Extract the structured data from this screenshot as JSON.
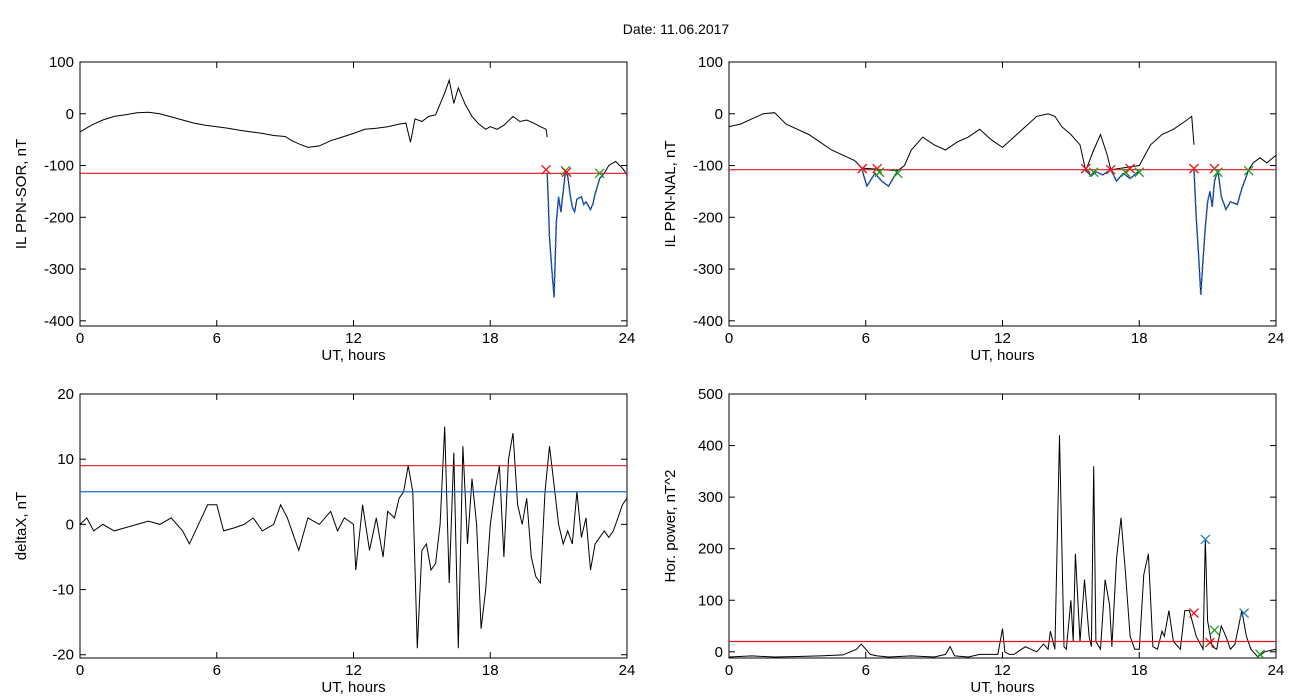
{
  "header": {
    "title": "Date:  11.06.2017"
  },
  "colors": {
    "threshold": "#e8141c",
    "secondary_threshold": "#2266cc",
    "series": "#000000",
    "event_blue": "#1f5fd0",
    "marker_red": "#e8141c",
    "marker_green": "#1aa01a",
    "marker_blue": "#2a80c0"
  },
  "chart_data": [
    {
      "id": "il-ppn-sor",
      "type": "line",
      "xlabel": "UT, hours",
      "ylabel": "IL PPN-SOR, nT",
      "xlim": [
        0,
        24
      ],
      "ylim": [
        -410,
        100
      ],
      "xticks": [
        0,
        6,
        12,
        18,
        24
      ],
      "yticks": [
        -400,
        -300,
        -200,
        -100,
        0,
        100
      ],
      "thresholds": [
        {
          "value": -115,
          "color": "#e8141c"
        }
      ],
      "series": [
        {
          "x": [
            0,
            0.5,
            1,
            1.5,
            2,
            2.5,
            3,
            3.5,
            4,
            4.5,
            5,
            5.5,
            6,
            6.5,
            7,
            7.5,
            8,
            8.5,
            9,
            9.3,
            9.6,
            10,
            10.5,
            11,
            11.5,
            12,
            12.5,
            13,
            13.5,
            14,
            14.3,
            14.5,
            14.7,
            15,
            15.3,
            15.6,
            16,
            16.2,
            16.4,
            16.6,
            16.9,
            17.2,
            17.5,
            17.8,
            18,
            18.3,
            18.6,
            19,
            19.3,
            19.6,
            19.9,
            20.2,
            20.45,
            20.5
          ],
          "y": [
            -35,
            -22,
            -12,
            -5,
            -2,
            2,
            3,
            0,
            -6,
            -12,
            -18,
            -22,
            -25,
            -28,
            -32,
            -35,
            -38,
            -42,
            -44,
            -52,
            -58,
            -65,
            -62,
            -52,
            -45,
            -38,
            -30,
            -28,
            -25,
            -20,
            -18,
            -55,
            -10,
            -15,
            -5,
            -2,
            40,
            65,
            20,
            50,
            18,
            -5,
            -20,
            -30,
            -25,
            -30,
            -22,
            -5,
            -15,
            -12,
            -18,
            -25,
            -30,
            -45
          ]
        }
      ],
      "event_series": {
        "x": [
          20.5,
          20.55,
          20.6,
          20.7,
          20.8,
          20.85,
          20.9,
          21.0,
          21.1,
          21.2,
          21.3,
          21.4,
          21.5,
          21.6,
          21.7,
          21.8,
          22.0,
          22.1,
          22.2,
          22.4,
          22.5,
          22.6,
          22.8,
          23.0
        ],
        "y": [
          -115,
          -175,
          -240,
          -300,
          -355,
          -280,
          -210,
          -160,
          -190,
          -150,
          -112,
          -120,
          -155,
          -180,
          -190,
          -165,
          -160,
          -175,
          -170,
          -185,
          -175,
          -155,
          -125,
          -115
        ]
      },
      "tail_series": {
        "x": [
          23.0,
          23.2,
          23.5,
          23.8,
          24
        ],
        "y": [
          -115,
          -100,
          -92,
          -105,
          -118
        ]
      },
      "markers": [
        {
          "x": 20.45,
          "y": -108,
          "color": "#e8141c"
        },
        {
          "x": 21.3,
          "y": -110,
          "color": "#1aa01a"
        },
        {
          "x": 21.35,
          "y": -113,
          "color": "#e8141c"
        },
        {
          "x": 22.8,
          "y": -115,
          "color": "#1aa01a"
        }
      ]
    },
    {
      "id": "il-ppn-nal",
      "type": "line",
      "xlabel": "UT, hours",
      "ylabel": "IL PPN-NAL, nT",
      "xlim": [
        0,
        24
      ],
      "ylim": [
        -410,
        100
      ],
      "xticks": [
        0,
        6,
        12,
        18,
        24
      ],
      "yticks": [
        -400,
        -300,
        -200,
        -100,
        0,
        100
      ],
      "thresholds": [
        {
          "value": -108,
          "color": "#e8141c"
        }
      ],
      "series": [
        {
          "x": [
            0,
            0.5,
            1,
            1.5,
            2,
            2.5,
            3,
            3.5,
            4,
            4.5,
            5,
            5.5,
            5.85,
            7.4,
            7.7,
            8,
            8.5,
            9,
            9.5,
            10,
            10.5,
            11,
            11.5,
            12,
            12.5,
            13,
            13.5,
            14,
            14.3,
            14.6,
            15,
            15.4,
            15.65,
            16.0,
            16.3,
            16.6,
            16.75,
            18.0,
            18.5,
            19,
            19.5,
            20,
            20.3,
            20.4
          ],
          "y": [
            -25,
            -20,
            -10,
            0,
            2,
            -20,
            -30,
            -40,
            -55,
            -70,
            -80,
            -90,
            -105,
            -110,
            -100,
            -70,
            -45,
            -60,
            -70,
            -55,
            -45,
            -30,
            -50,
            -65,
            -45,
            -25,
            -5,
            0,
            -5,
            -25,
            -40,
            -60,
            -110,
            -70,
            -40,
            -80,
            -108,
            -100,
            -60,
            -40,
            -30,
            -15,
            -5,
            -60
          ]
        }
      ],
      "event_series_list": [
        {
          "x": [
            5.85,
            6.05,
            6.4,
            6.7,
            7.0,
            7.4
          ],
          "y": [
            -110,
            -140,
            -115,
            -130,
            -140,
            -110
          ]
        },
        {
          "x": [
            15.65,
            15.9,
            16.1,
            16.4,
            16.75
          ],
          "y": [
            -110,
            -120,
            -112,
            -118,
            -108
          ]
        },
        {
          "x": [
            16.75,
            17.0,
            17.3,
            17.6,
            18.0
          ],
          "y": [
            -108,
            -130,
            -115,
            -125,
            -110
          ]
        },
        {
          "x": [
            20.4,
            20.5,
            20.6,
            20.7,
            20.8,
            20.9,
            21.0,
            21.1,
            21.2,
            21.3,
            21.45,
            21.6,
            21.8,
            22.0,
            22.3,
            22.5,
            22.8
          ],
          "y": [
            -108,
            -200,
            -270,
            -350,
            -280,
            -220,
            -170,
            -150,
            -180,
            -130,
            -110,
            -160,
            -185,
            -170,
            -175,
            -145,
            -108
          ]
        }
      ],
      "tail_series": {
        "x": [
          22.8,
          23.0,
          23.3,
          23.6,
          24
        ],
        "y": [
          -108,
          -95,
          -85,
          -95,
          -80
        ]
      },
      "markers": [
        {
          "x": 5.85,
          "y": -106,
          "color": "#e8141c"
        },
        {
          "x": 6.5,
          "y": -106,
          "color": "#e8141c"
        },
        {
          "x": 6.6,
          "y": -113,
          "color": "#1aa01a"
        },
        {
          "x": 7.4,
          "y": -115,
          "color": "#1aa01a"
        },
        {
          "x": 15.65,
          "y": -106,
          "color": "#e8141c"
        },
        {
          "x": 16.0,
          "y": -113,
          "color": "#1aa01a"
        },
        {
          "x": 16.75,
          "y": -108,
          "color": "#e8141c"
        },
        {
          "x": 17.4,
          "y": -113,
          "color": "#1aa01a"
        },
        {
          "x": 17.6,
          "y": -106,
          "color": "#e8141c"
        },
        {
          "x": 18.0,
          "y": -113,
          "color": "#1aa01a"
        },
        {
          "x": 20.4,
          "y": -106,
          "color": "#e8141c"
        },
        {
          "x": 21.3,
          "y": -106,
          "color": "#e8141c"
        },
        {
          "x": 21.45,
          "y": -113,
          "color": "#1aa01a"
        },
        {
          "x": 22.8,
          "y": -110,
          "color": "#1aa01a"
        }
      ]
    },
    {
      "id": "delta-x",
      "type": "line",
      "xlabel": "UT, hours",
      "ylabel": "deltaX, nT",
      "xlim": [
        0,
        24
      ],
      "ylim": [
        -20.5,
        20
      ],
      "xticks": [
        0,
        6,
        12,
        18,
        24
      ],
      "yticks": [
        -20,
        -10,
        0,
        10,
        20
      ],
      "thresholds": [
        {
          "value": 9,
          "color": "#e8141c"
        },
        {
          "value": 5,
          "color": "#2266cc"
        }
      ],
      "series": [
        {
          "x": [
            0,
            0.3,
            0.6,
            1,
            1.5,
            2,
            2.5,
            3,
            3.5,
            4,
            4.5,
            4.8,
            5.2,
            5.6,
            6,
            6.3,
            6.8,
            7.2,
            7.6,
            8,
            8.5,
            8.8,
            9.1,
            9.4,
            9.6,
            10,
            10.5,
            11,
            11.3,
            11.6,
            12,
            12.1,
            12.4,
            12.7,
            13,
            13.3,
            13.5,
            13.8,
            14,
            14.2,
            14.4,
            14.6,
            14.8,
            15,
            15.2,
            15.4,
            15.6,
            15.8,
            16,
            16.2,
            16.4,
            16.6,
            16.8,
            17,
            17.2,
            17.4,
            17.6,
            17.8,
            18,
            18.2,
            18.4,
            18.6,
            18.8,
            19,
            19.2,
            19.4,
            19.6,
            19.8,
            20,
            20.2,
            20.4,
            20.6,
            20.8,
            21,
            21.2,
            21.4,
            21.6,
            21.8,
            22,
            22.2,
            22.4,
            22.6,
            22.8,
            23,
            23.2,
            23.4,
            23.6,
            23.8,
            24
          ],
          "y": [
            0,
            1,
            -1,
            0,
            -1,
            -0.5,
            0,
            0.5,
            0,
            1,
            -1,
            -3,
            0,
            3,
            3,
            -1,
            -0.5,
            0,
            1,
            -1,
            0,
            3,
            1,
            -2,
            -4,
            1,
            0,
            2,
            -1,
            1,
            0,
            -7,
            3,
            -4,
            1,
            -5,
            2,
            1,
            4,
            5,
            9,
            5,
            -19,
            -4,
            -3,
            -7,
            -6,
            0,
            15,
            -9,
            11,
            -19,
            12,
            -3,
            7,
            0,
            -16,
            -10,
            0,
            5,
            9,
            -5,
            10,
            14,
            3,
            0,
            4,
            -5,
            -8,
            -9,
            5,
            12,
            6,
            0,
            -3,
            -1,
            -3,
            5,
            -2,
            1,
            -7,
            -3,
            -2,
            -1,
            -2,
            -1,
            1,
            3,
            4
          ]
        }
      ]
    },
    {
      "id": "hor-power",
      "type": "line",
      "xlabel": "UT, hours",
      "ylabel": "Hor. power, nT^2",
      "xlim": [
        0,
        24
      ],
      "ylim": [
        -12,
        500
      ],
      "xticks": [
        0,
        6,
        12,
        18,
        24
      ],
      "yticks": [
        0,
        100,
        200,
        300,
        400,
        500
      ],
      "thresholds": [
        {
          "value": 20,
          "color": "#e8141c"
        }
      ],
      "series": [
        {
          "x": [
            0,
            1,
            2,
            3,
            4,
            5,
            5.6,
            5.8,
            6,
            6.2,
            6.5,
            7,
            8,
            9,
            9.5,
            9.7,
            9.9,
            10.5,
            11,
            11.8,
            12,
            12.1,
            12.3,
            12.5,
            13,
            13.5,
            13.8,
            14,
            14.1,
            14.3,
            14.5,
            14.7,
            14.8,
            15,
            15.1,
            15.2,
            15.4,
            15.6,
            15.8,
            15.9,
            16.0,
            16.1,
            16.3,
            16.5,
            16.7,
            16.8,
            17,
            17.2,
            17.4,
            17.6,
            17.8,
            18,
            18.2,
            18.4,
            18.6,
            18.8,
            19.0,
            19.1,
            19.3,
            19.5,
            19.8,
            20,
            20.2,
            20.5,
            20.8,
            20.9,
            21.0,
            21.2,
            21.4,
            21.6,
            21.8,
            22,
            22.2,
            22.5,
            22.7,
            22.9,
            23.2,
            23.5,
            24
          ],
          "y": [
            -10,
            -8,
            -10,
            -9,
            -8,
            -6,
            5,
            15,
            5,
            -5,
            -8,
            -10,
            -8,
            -10,
            -5,
            10,
            -8,
            -10,
            -5,
            -5,
            45,
            0,
            -5,
            -5,
            10,
            0,
            15,
            5,
            40,
            5,
            420,
            10,
            5,
            100,
            20,
            190,
            20,
            140,
            30,
            10,
            360,
            20,
            5,
            140,
            90,
            10,
            180,
            260,
            150,
            30,
            5,
            5,
            150,
            190,
            10,
            5,
            40,
            30,
            80,
            20,
            5,
            80,
            80,
            30,
            5,
            220,
            60,
            10,
            5,
            50,
            30,
            5,
            15,
            80,
            30,
            5,
            -10,
            0,
            5
          ]
        }
      ],
      "markers": [
        {
          "x": 20.4,
          "y": 75,
          "color": "#e8141c"
        },
        {
          "x": 20.9,
          "y": 218,
          "color": "#2a80c0"
        },
        {
          "x": 21.1,
          "y": 18,
          "color": "#e8141c"
        },
        {
          "x": 21.3,
          "y": 42,
          "color": "#1aa01a"
        },
        {
          "x": 22.6,
          "y": 75,
          "color": "#2a80c0"
        },
        {
          "x": 23.3,
          "y": -5,
          "color": "#1aa01a"
        }
      ]
    }
  ]
}
